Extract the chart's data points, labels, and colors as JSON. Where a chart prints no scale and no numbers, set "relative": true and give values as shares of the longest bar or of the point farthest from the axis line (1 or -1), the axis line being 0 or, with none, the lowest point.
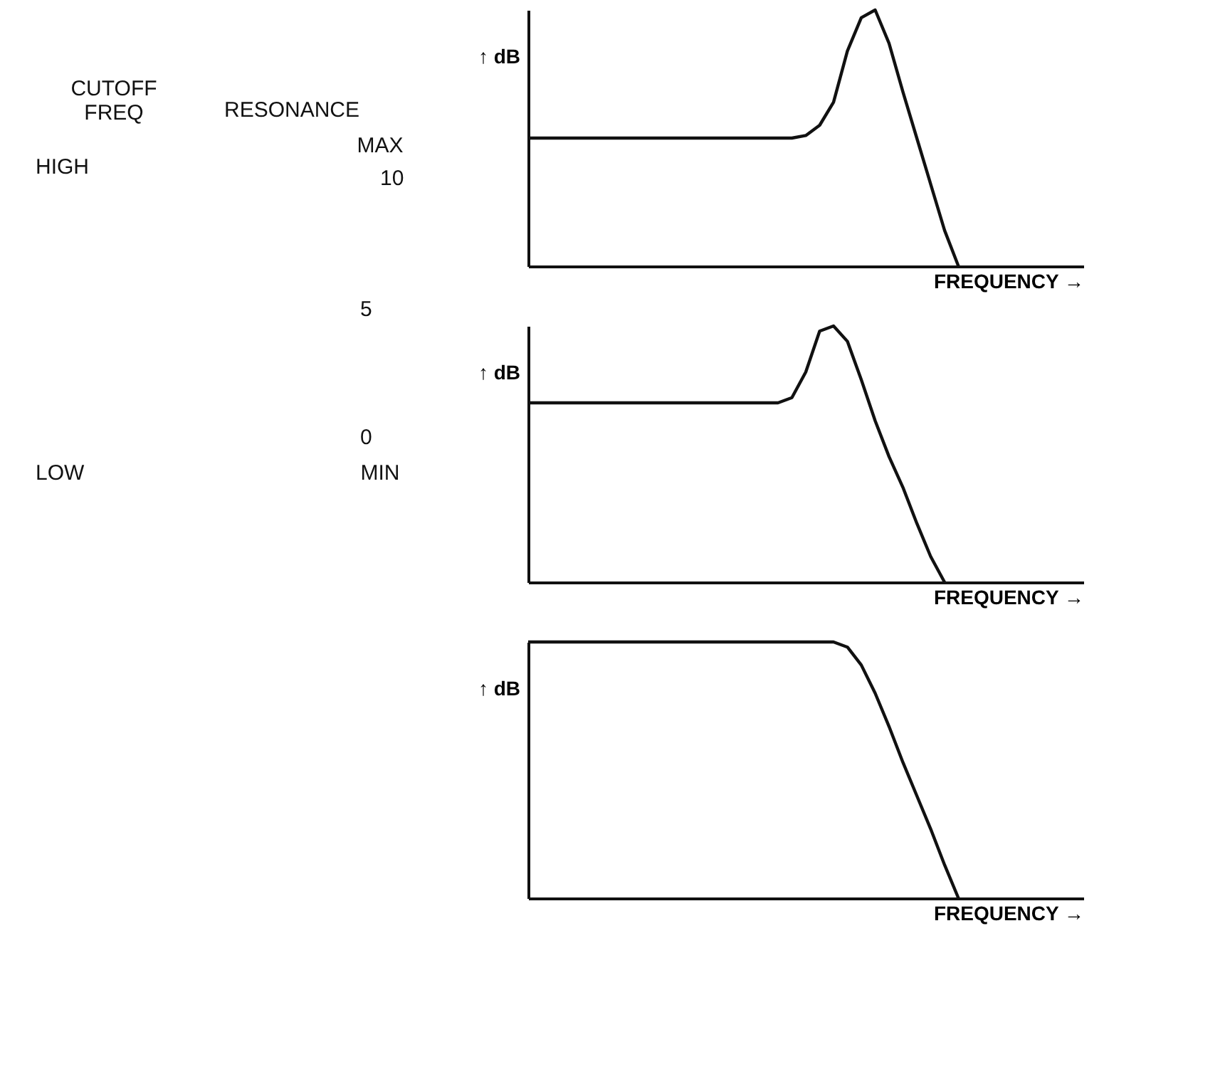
{
  "chart_data": [
    {
      "type": "other",
      "annotations": [
        "CUTOFF FREQ",
        "RESONANCE",
        "HIGH",
        "MAX",
        "10",
        "5",
        "0",
        "LOW",
        "MIN"
      ]
    },
    {
      "type": "line",
      "relative": true,
      "xlabel": "FREQUENCY →",
      "ylabel": "↑ dB",
      "marker": "none",
      "line_style": "solid",
      "grid": false,
      "categories": [
        null,
        null,
        null,
        null,
        null,
        null,
        null,
        null,
        null,
        null,
        null,
        null,
        null,
        null,
        null,
        null,
        null,
        null,
        null,
        null,
        null,
        null,
        null,
        null,
        null,
        null,
        null,
        null,
        null,
        null,
        null,
        null,
        null,
        null,
        null,
        null,
        null,
        null,
        null,
        null,
        null
      ],
      "series": [
        {
          "color": "#111111",
          "values": [
            0.5,
            0.5,
            0.5,
            0.5,
            0.5,
            0.5,
            0.5,
            0.5,
            0.5,
            0.5,
            0.5,
            0.5,
            0.5,
            0.5,
            0.5,
            0.5,
            0.5,
            0.5,
            0.5,
            0.5,
            0.51,
            0.55,
            0.64,
            0.84,
            0.97,
            1.0,
            0.87,
            0.68,
            0.5,
            0.32,
            0.14,
            0,
            null,
            null,
            null,
            null,
            null,
            null,
            null,
            null,
            null
          ]
        }
      ]
    },
    {
      "type": "line",
      "relative": true,
      "xlabel": "FREQUENCY →",
      "ylabel": "↑ dB",
      "marker": "none",
      "line_style": "solid",
      "grid": false,
      "categories": [
        null,
        null,
        null,
        null,
        null,
        null,
        null,
        null,
        null,
        null,
        null,
        null,
        null,
        null,
        null,
        null,
        null,
        null,
        null,
        null,
        null,
        null,
        null,
        null,
        null,
        null,
        null,
        null,
        null,
        null,
        null,
        null,
        null,
        null,
        null,
        null,
        null,
        null,
        null,
        null,
        null
      ],
      "series": [
        {
          "color": "#111111",
          "values": [
            0.7,
            0.7,
            0.7,
            0.7,
            0.7,
            0.7,
            0.7,
            0.7,
            0.7,
            0.7,
            0.7,
            0.7,
            0.7,
            0.7,
            0.7,
            0.7,
            0.7,
            0.7,
            0.7,
            0.72,
            0.82,
            0.98,
            1.0,
            0.94,
            0.79,
            0.63,
            0.49,
            0.37,
            0.23,
            0.1,
            0,
            null,
            null,
            null,
            null,
            null,
            null,
            null,
            null,
            null,
            null
          ]
        }
      ]
    },
    {
      "type": "line",
      "relative": true,
      "xlabel": "FREQUENCY →",
      "ylabel": "↑ dB",
      "marker": "none",
      "line_style": "solid",
      "grid": false,
      "categories": [
        null,
        null,
        null,
        null,
        null,
        null,
        null,
        null,
        null,
        null,
        null,
        null,
        null,
        null,
        null,
        null,
        null,
        null,
        null,
        null,
        null,
        null,
        null,
        null,
        null,
        null,
        null,
        null,
        null,
        null,
        null,
        null,
        null,
        null,
        null,
        null,
        null,
        null,
        null,
        null,
        null
      ],
      "series": [
        {
          "color": "#111111",
          "values": [
            1.0,
            1.0,
            1.0,
            1.0,
            1.0,
            1.0,
            1.0,
            1.0,
            1.0,
            1.0,
            1.0,
            1.0,
            1.0,
            1.0,
            1.0,
            1.0,
            1.0,
            1.0,
            1.0,
            1.0,
            1.0,
            1.0,
            1.0,
            0.98,
            0.91,
            0.8,
            0.67,
            0.53,
            0.4,
            0.27,
            0.13,
            0,
            null,
            null,
            null,
            null,
            null,
            null,
            null,
            null,
            null
          ]
        }
      ]
    }
  ]
}
